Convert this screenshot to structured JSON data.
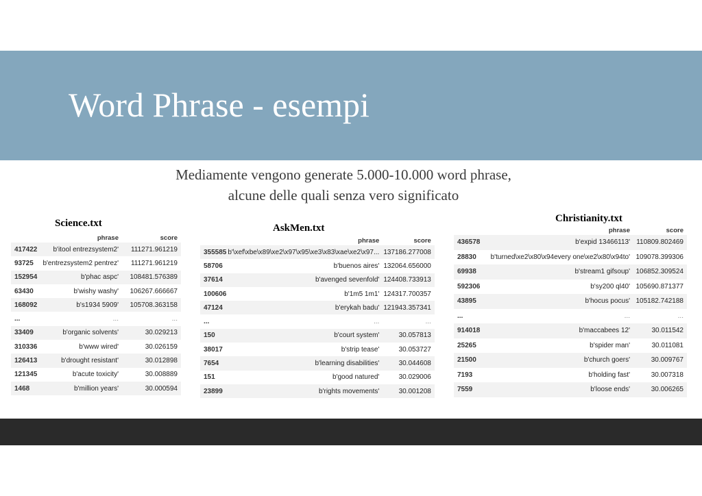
{
  "slide": {
    "title": "Word Phrase - esempi",
    "subtitle_line1": "Mediamente vengono generate 5.000-10.000 word phrase,",
    "subtitle_line2": "alcune delle quali senza vero significato"
  },
  "tables": [
    {
      "title": "Science.txt",
      "columns": [
        "phrase",
        "score"
      ],
      "rows": [
        [
          "417422",
          "b'itool entrezsystem2'",
          "111271.961219"
        ],
        [
          "93725",
          "b'entrezsystem2 pentrez'",
          "111271.961219"
        ],
        [
          "152954",
          "b'phac aspc'",
          "108481.576389"
        ],
        [
          "63430",
          "b'wishy washy'",
          "106267.666667"
        ],
        [
          "168092",
          "b's1934 5909'",
          "105708.363158"
        ],
        [
          "...",
          "...",
          "..."
        ],
        [
          "33409",
          "b'organic solvents'",
          "30.029213"
        ],
        [
          "310336",
          "b'www wired'",
          "30.026159"
        ],
        [
          "126413",
          "b'drought resistant'",
          "30.012898"
        ],
        [
          "121345",
          "b'acute toxicity'",
          "30.008889"
        ],
        [
          "1468",
          "b'million years'",
          "30.000594"
        ]
      ]
    },
    {
      "title": "AskMen.txt",
      "columns": [
        "phrase",
        "score"
      ],
      "rows": [
        [
          "355585",
          "b'\\xef\\xbe\\x89\\xe2\\x97\\x95\\xe3\\x83\\xae\\xe2\\x97...",
          "137186.277008"
        ],
        [
          "58706",
          "b'buenos aires'",
          "132064.656000"
        ],
        [
          "37614",
          "b'avenged sevenfold'",
          "124408.733913"
        ],
        [
          "100606",
          "b'1m5 1m1'",
          "124317.700357"
        ],
        [
          "47124",
          "b'erykah badu'",
          "121943.357341"
        ],
        [
          "...",
          "...",
          "..."
        ],
        [
          "150",
          "b'court system'",
          "30.057813"
        ],
        [
          "38017",
          "b'strip tease'",
          "30.053727"
        ],
        [
          "7654",
          "b'learning disabilities'",
          "30.044608"
        ],
        [
          "151",
          "b'good natured'",
          "30.029006"
        ],
        [
          "23899",
          "b'rights movements'",
          "30.001208"
        ]
      ]
    },
    {
      "title": "Christianity.txt",
      "columns": [
        "phrase",
        "score"
      ],
      "rows": [
        [
          "436578",
          "b'expid 13466113'",
          "110809.802469"
        ],
        [
          "28830",
          "b'turned\\xe2\\x80\\x94every one\\xe2\\x80\\x94to'",
          "109078.399306"
        ],
        [
          "69938",
          "b'stream1 gifsoup'",
          "106852.309524"
        ],
        [
          "592306",
          "b'sy200 ql40'",
          "105690.871377"
        ],
        [
          "43895",
          "b'hocus pocus'",
          "105182.742188"
        ],
        [
          "...",
          "...",
          "..."
        ],
        [
          "914018",
          "b'maccabees 12'",
          "30.011542"
        ],
        [
          "25265",
          "b'spider man'",
          "30.011081"
        ],
        [
          "21500",
          "b'church goers'",
          "30.009767"
        ],
        [
          "7193",
          "b'holding fast'",
          "30.007318"
        ],
        [
          "7559",
          "b'loose ends'",
          "30.006265"
        ]
      ]
    }
  ]
}
